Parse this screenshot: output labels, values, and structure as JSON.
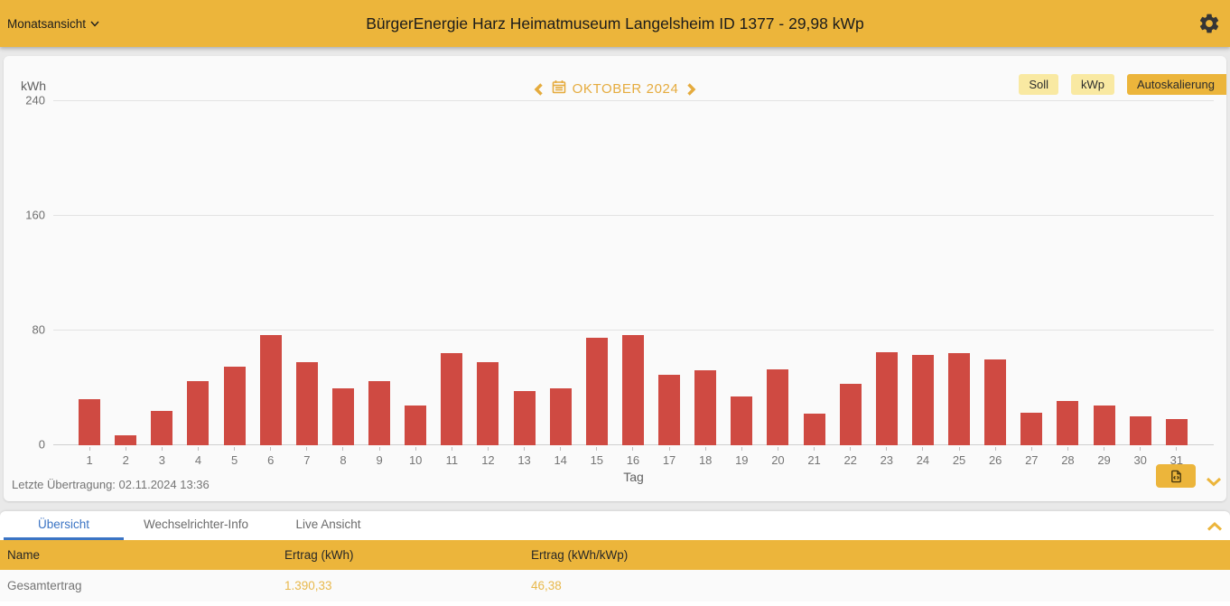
{
  "top_bar": {
    "view_selector_label": "Monatsansicht",
    "title": "BürgerEnergie Harz Heimatmuseum Langelsheim ID 1377 - 29,98 kWp"
  },
  "chart_panel": {
    "unit_label": "kWh",
    "month_label": "OKTOBER 2024",
    "soll_button": "Soll",
    "kwp_button": "kWp",
    "autoscale_button": "Autoskalierung",
    "x_axis_label": "Tag",
    "last_transmission": "Letzte Übertragung: 02.11.2024 13:36"
  },
  "chart_data": {
    "type": "bar",
    "title": "OKTOBER 2024",
    "xlabel": "Tag",
    "ylabel": "kWh",
    "ylim": [
      0,
      240
    ],
    "yticks": [
      0,
      80,
      160,
      240
    ],
    "grid": true,
    "legend": false,
    "bar_color": "#cf4a42",
    "categories": [
      "1",
      "2",
      "3",
      "4",
      "5",
      "6",
      "7",
      "8",
      "9",
      "10",
      "11",
      "12",
      "13",
      "14",
      "15",
      "16",
      "17",
      "18",
      "19",
      "20",
      "21",
      "22",
      "23",
      "24",
      "25",
      "26",
      "27",
      "28",
      "29",
      "30",
      "31"
    ],
    "values": [
      32,
      7,
      24,
      45,
      55,
      77,
      58,
      40,
      45,
      28,
      64,
      58,
      38,
      40,
      75,
      77,
      49,
      52,
      34,
      53,
      22,
      43,
      65,
      63,
      64,
      60,
      23,
      31,
      28,
      20,
      18
    ],
    "total_kwh": "1.390,33",
    "total_kwh_per_kwp": "46,38"
  },
  "tabs": [
    {
      "label": "Übersicht",
      "active": true
    },
    {
      "label": "Wechselrichter-Info",
      "active": false
    },
    {
      "label": "Live Ansicht",
      "active": false
    }
  ],
  "table": {
    "headers": [
      "Name",
      "Ertrag (kWh)",
      "Ertrag (kWh/kWp)"
    ],
    "rows": [
      {
        "name": "Gesamtertrag",
        "ertrag_kwh": "1.390,33",
        "ertrag_kwh_kwp": "46,38"
      }
    ]
  },
  "colors": {
    "accent_gold": "#ecb53b",
    "light_gold_chip": "#f9e9a2",
    "bar_red": "#cf4a42",
    "active_tab_blue": "#3b74c4",
    "gold_text": "#e8b84b"
  }
}
